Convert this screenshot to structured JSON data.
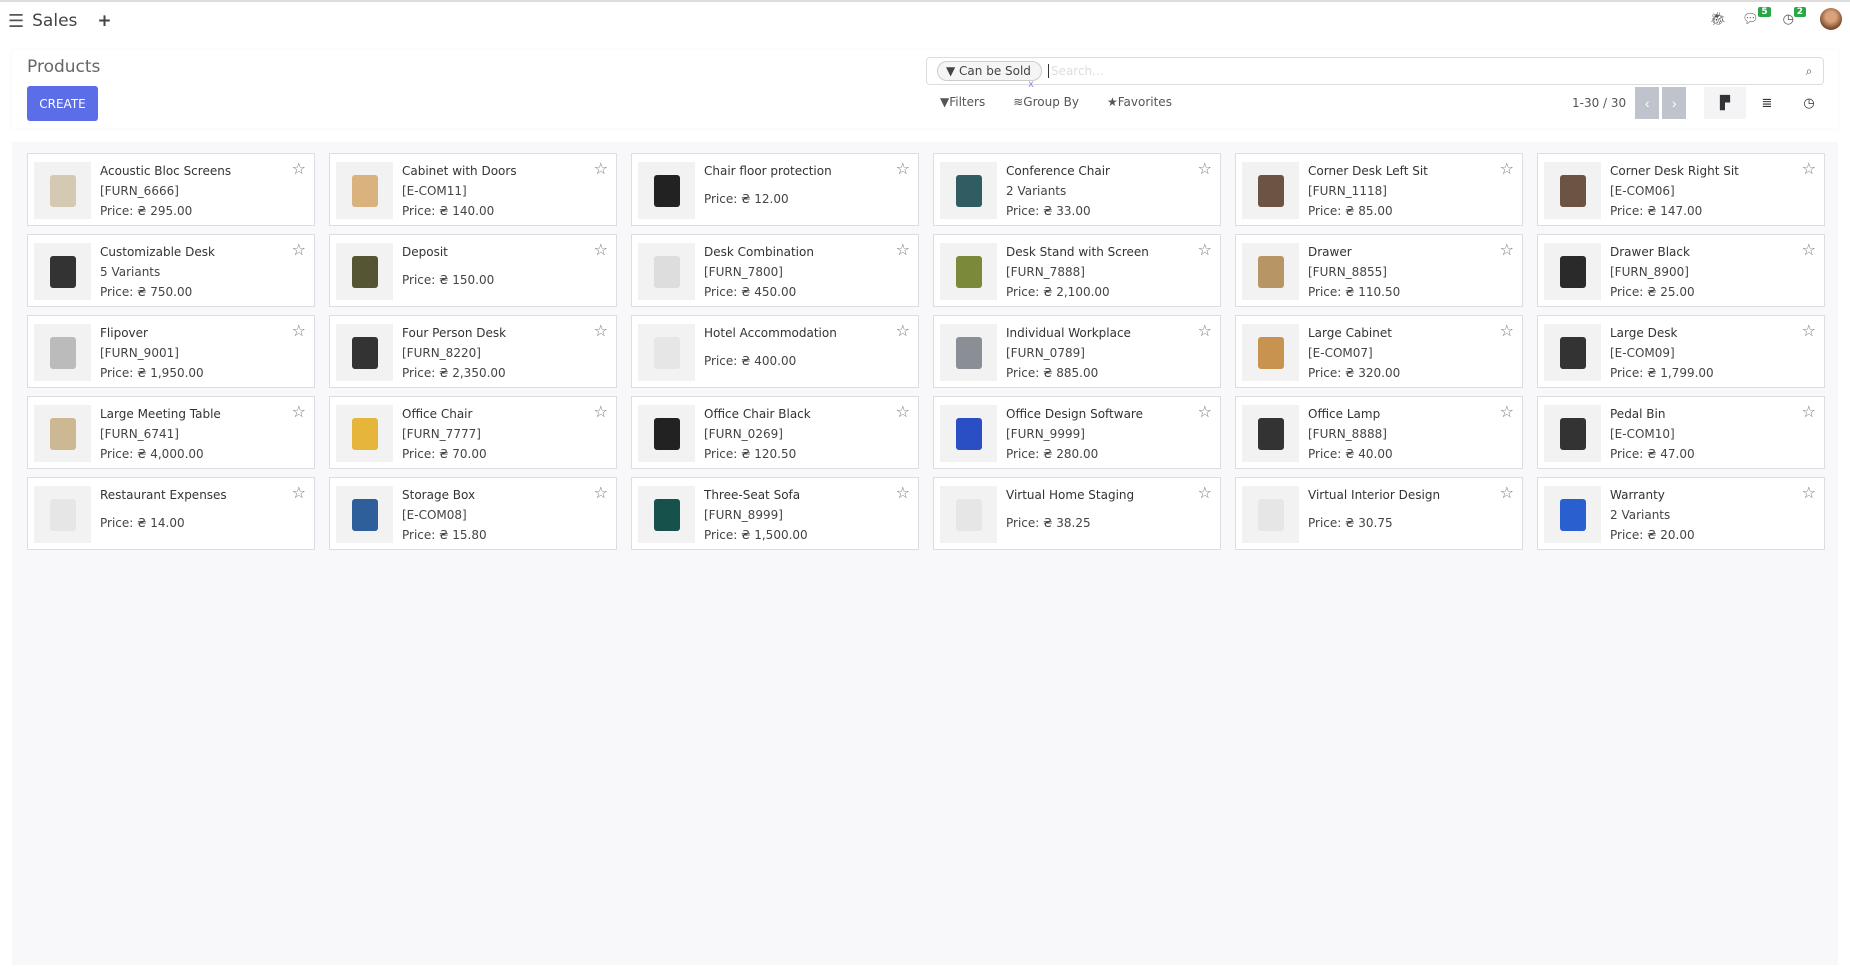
{
  "topbar": {
    "app": "Sales",
    "messages_badge": "5",
    "activities_badge": "2"
  },
  "control": {
    "title": "Products",
    "create": "CREATE",
    "facet": "Can be Sold",
    "facet_remove": "x",
    "search_placeholder": "Search...",
    "filters": "Filters",
    "group_by": "Group By",
    "favorites": "Favorites",
    "pager": "1-30 / 30"
  },
  "products": [
    {
      "name": "Acoustic Bloc Screens",
      "code": "[FURN_6666]",
      "price": "Price: ₴ 295.00",
      "tone": "#d6c9b3"
    },
    {
      "name": "Cabinet with Doors",
      "code": "[E-COM11]",
      "price": "Price: ₴ 140.00",
      "tone": "#d9b27e"
    },
    {
      "name": "Chair floor protection",
      "price": "Price: ₴ 12.00",
      "tone": "#222"
    },
    {
      "name": "Conference Chair",
      "code": "2 Variants",
      "price": "Price: ₴ 33.00",
      "tone": "#2f5d62"
    },
    {
      "name": "Corner Desk Left Sit",
      "code": "[FURN_1118]",
      "price": "Price: ₴ 85.00",
      "tone": "#6b5443"
    },
    {
      "name": "Corner Desk Right Sit",
      "code": "[E-COM06]",
      "price": "Price: ₴ 147.00",
      "tone": "#6b5443"
    },
    {
      "name": "Customizable Desk",
      "code": "5 Variants",
      "price": "Price: ₴ 750.00",
      "tone": "#333"
    },
    {
      "name": "Deposit",
      "price": "Price: ₴ 150.00",
      "tone": "#553"
    },
    {
      "name": "Desk Combination",
      "code": "[FURN_7800]",
      "price": "Price: ₴ 450.00",
      "tone": "#ddd"
    },
    {
      "name": "Desk Stand with Screen",
      "code": "[FURN_7888]",
      "price": "Price: ₴ 2,100.00",
      "tone": "#7a8a3a"
    },
    {
      "name": "Drawer",
      "code": "[FURN_8855]",
      "price": "Price: ₴ 110.50",
      "tone": "#b89565"
    },
    {
      "name": "Drawer Black",
      "code": "[FURN_8900]",
      "price": "Price: ₴ 25.00",
      "tone": "#2a2a2a"
    },
    {
      "name": "Flipover",
      "code": "[FURN_9001]",
      "price": "Price: ₴ 1,950.00",
      "tone": "#bbb"
    },
    {
      "name": "Four Person Desk",
      "code": "[FURN_8220]",
      "price": "Price: ₴ 2,350.00",
      "tone": "#333"
    },
    {
      "name": "Hotel Accommodation",
      "price": "Price: ₴ 400.00",
      "tone": "#e6e6e6"
    },
    {
      "name": "Individual Workplace",
      "code": "[FURN_0789]",
      "price": "Price: ₴ 885.00",
      "tone": "#8a8f96"
    },
    {
      "name": "Large Cabinet",
      "code": "[E-COM07]",
      "price": "Price: ₴ 320.00",
      "tone": "#c8934f"
    },
    {
      "name": "Large Desk",
      "code": "[E-COM09]",
      "price": "Price: ₴ 1,799.00",
      "tone": "#333"
    },
    {
      "name": "Large Meeting Table",
      "code": "[FURN_6741]",
      "price": "Price: ₴ 4,000.00",
      "tone": "#cdb894"
    },
    {
      "name": "Office Chair",
      "code": "[FURN_7777]",
      "price": "Price: ₴ 70.00",
      "tone": "#e6b53c"
    },
    {
      "name": "Office Chair Black",
      "code": "[FURN_0269]",
      "price": "Price: ₴ 120.50",
      "tone": "#222"
    },
    {
      "name": "Office Design Software",
      "code": "[FURN_9999]",
      "price": "Price: ₴ 280.00",
      "tone": "#2a4fc4"
    },
    {
      "name": "Office Lamp",
      "code": "[FURN_8888]",
      "price": "Price: ₴ 40.00",
      "tone": "#333"
    },
    {
      "name": "Pedal Bin",
      "code": "[E-COM10]",
      "price": "Price: ₴ 47.00",
      "tone": "#333"
    },
    {
      "name": "Restaurant Expenses",
      "price": "Price: ₴ 14.00",
      "tone": "#e6e6e6"
    },
    {
      "name": "Storage Box",
      "code": "[E-COM08]",
      "price": "Price: ₴ 15.80",
      "tone": "#2f5f9a"
    },
    {
      "name": "Three-Seat Sofa",
      "code": "[FURN_8999]",
      "price": "Price: ₴ 1,500.00",
      "tone": "#17514c"
    },
    {
      "name": "Virtual Home Staging",
      "price": "Price: ₴ 38.25",
      "tone": "#e6e6e6"
    },
    {
      "name": "Virtual Interior Design",
      "price": "Price: ₴ 30.75",
      "tone": "#e6e6e6"
    },
    {
      "name": "Warranty",
      "code": "2 Variants",
      "price": "Price: ₴ 20.00",
      "tone": "#2a5fd0"
    }
  ]
}
